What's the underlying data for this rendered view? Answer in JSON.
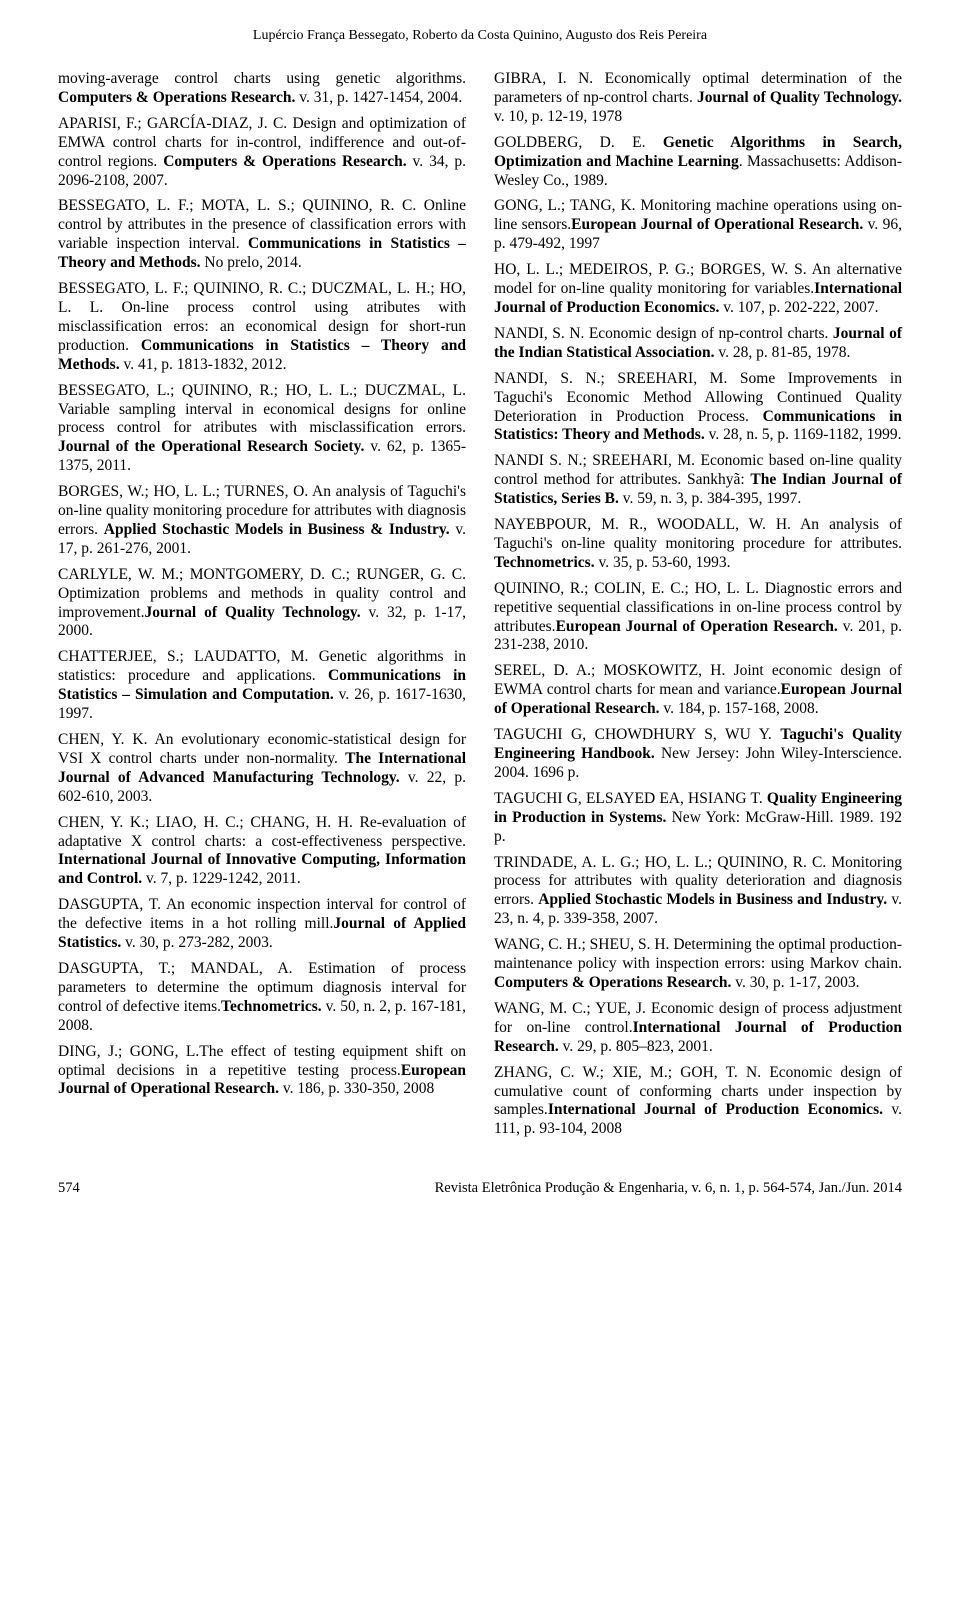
{
  "header_authors": "Lupércio França Bessegato, Roberto da Costa Quinino, Augusto dos Reis Pereira",
  "footer": {
    "page": "574",
    "citation": "Revista Eletrônica Produção & Engenharia, v. 6, n. 1, p. 564-574, Jan./Jun. 2014"
  },
  "left": [
    {
      "html": "moving-average control charts using genetic algorithms. <b>Computers & Operations Research.</b> v. 31, p. 1427-1454, 2004."
    },
    {
      "html": "APARISI, F.; GARCÍA-DIAZ, J. C. Design and optimization of EMWA control charts for in-control, indifference and out-of-control regions. <b>Computers & Operations Research.</b> v. 34, p. 2096-2108, 2007."
    },
    {
      "html": "BESSEGATO, L. F.; MOTA, L. S.; QUININO, R. C. Online control by attributes in the presence of classification errors with variable inspection interval. <b>Communications in Statistics – Theory and Methods.</b> No prelo, 2014."
    },
    {
      "html": "BESSEGATO, L. F.; QUININO, R. C.; DUCZMAL, L. H.; HO, L. L. On-line process control using atributes with misclassification erros: an economical design for short-run production. <b>Communications in Statistics – Theory and Methods.</b> v. 41, p. 1813-1832, 2012."
    },
    {
      "html": "BESSEGATO, L.; QUININO, R.; HO, L. L.; DUCZMAL, L. Variable sampling interval in economical designs for online process control for atributes with misclassification errors. <b>Journal of the Operational Research Society.</b> v. 62, p. 1365-1375, 2011."
    },
    {
      "html": "BORGES, W.; HO, L. L.; TURNES, O. An analysis of Taguchi's on-line quality monitoring procedure for attributes with diagnosis errors. <b>Applied Stochastic Models in Business & Industry.</b> v. 17, p. 261-276, 2001."
    },
    {
      "html": "CARLYLE, W. M.; MONTGOMERY, D. C.; RUNGER, G. C. Optimization problems and methods in quality control and improvement.<b>Journal of Quality Technology.</b> v. 32, p. 1-17, 2000."
    },
    {
      "html": "CHATTERJEE, S.; LAUDATTO, M. Genetic algorithms in statistics: procedure and applications. <b>Communications in Statistics – Simulation and Computation.</b> v. 26, p. 1617-1630, 1997."
    },
    {
      "html": "CHEN, Y. K. An evolutionary economic-statistical design for VSI X control charts under non-normality. <b>The International Journal of Advanced Manufacturing Technology.</b> v. 22, p. 602-610, 2003."
    },
    {
      "html": "CHEN, Y. K.; LIAO, H. C.; CHANG, H. H. Re-evaluation of adaptative X control charts: a cost-effectiveness perspective. <b>International Journal of Innovative Computing, Information and Control.</b> v. 7, p. 1229-1242, 2011."
    },
    {
      "html": "DASGUPTA, T. An economic inspection interval for control of the defective items in a hot rolling mill.<b>Journal of Applied Statistics.</b> v. 30, p. 273-282, 2003."
    },
    {
      "html": "DASGUPTA, T.; MANDAL, A. Estimation of process parameters to determine the optimum diagnosis interval for control of defective items.<b>Technometrics.</b> v. 50, n. 2, p. 167-181, 2008."
    },
    {
      "html": "DING, J.; GONG, L.The effect of testing equipment shift on optimal decisions in a repetitive testing process.<b>European Journal of Operational Research.</b> v. 186, p. 330-350, 2008"
    }
  ],
  "right": [
    {
      "html": "GIBRA, I. N. Economically optimal determination of the parameters of np-control charts. <b>Journal of Quality Technology.</b> v. 10, p. 12-19, 1978"
    },
    {
      "html": "GOLDBERG, D. E. <b>Genetic Algorithms in Search, Optimization and Machine Learning</b>. Massachusetts: Addison-Wesley Co., 1989."
    },
    {
      "html": "GONG, L.; TANG, K. Monitoring machine operations using on-line sensors.<b>European Journal of Operational Research.</b> v. 96, p. 479-492, 1997"
    },
    {
      "html": "HO, L. L.; MEDEIROS, P. G.; BORGES, W. S. An alternative model for on-line quality monitoring for variables.<b>International Journal of Production Economics.</b> v. 107, p. 202-222, 2007."
    },
    {
      "html": "NANDI, S. N. Economic design of np-control charts. <b>Journal of the Indian Statistical Association.</b> v. 28, p. 81-85, 1978."
    },
    {
      "html": "NANDI, S. N.; SREEHARI, M. Some Improvements in Taguchi's Economic Method Allowing Continued Quality Deterioration in Production Process. <b>Communications in Statistics: Theory and Methods.</b> v. 28, n. 5, p. 1169-1182, 1999."
    },
    {
      "html": "NANDI S. N.; SREEHARI, M. Economic based on-line quality control method for attributes. Sankhyã: <b>The Indian Journal of Statistics, Series B.</b> v. 59, n. 3, p. 384-395, 1997."
    },
    {
      "html": "NAYEBPOUR, M. R., WOODALL, W. H. An analysis of Taguchi's on-line quality monitoring procedure for attributes. <b>Technometrics.</b> v. 35, p. 53-60, 1993."
    },
    {
      "html": "QUININO, R.; COLIN, E. C.; HO, L. L. Diagnostic errors and repetitive sequential classifications in on-line process control by attributes.<b>European Journal of Operation Research.</b> v. 201, p. 231-238, 2010."
    },
    {
      "html": "SEREL, D. A.; MOSKOWITZ, H. Joint economic design of EWMA control charts for mean and variance.<b>European Journal of Operational Research.</b> v. 184, p. 157-168, 2008."
    },
    {
      "html": "TAGUCHI G, CHOWDHURY S, WU Y. <b>Taguchi's Quality Engineering Handbook.</b> New Jersey: John Wiley-Interscience. 2004. 1696 p."
    },
    {
      "html": "TAGUCHI G, ELSAYED EA, HSIANG T. <b>Quality Engineering in Production in Systems.</b> New York: McGraw-Hill. 1989. 192 p."
    },
    {
      "html": "TRINDADE, A. L. G.; HO, L. L.; QUININO, R. C. Monitoring process for attributes with quality deterioration and diagnosis errors. <b>Applied Stochastic Models in Business and Industry.</b> v. 23, n. 4, p. 339-358, 2007."
    },
    {
      "html": "WANG, C. H.; SHEU, S. H. Determining the optimal production-maintenance policy with inspection errors: using Markov chain. <b>Computers & Operations Research.</b> v. 30, p. 1-17, 2003."
    },
    {
      "html": "WANG, M. C.; YUE, J. Economic design of process adjustment for on-line control.<b>International Journal of Production Research.</b> v. 29, p. 805–823, 2001."
    },
    {
      "html": "ZHANG, C. W.; XIE, M.; GOH, T. N. Economic design of cumulative count of conforming charts under inspection by samples.<b>International Journal of Production Economics.</b> v. 111, p. 93-104, 2008"
    }
  ]
}
